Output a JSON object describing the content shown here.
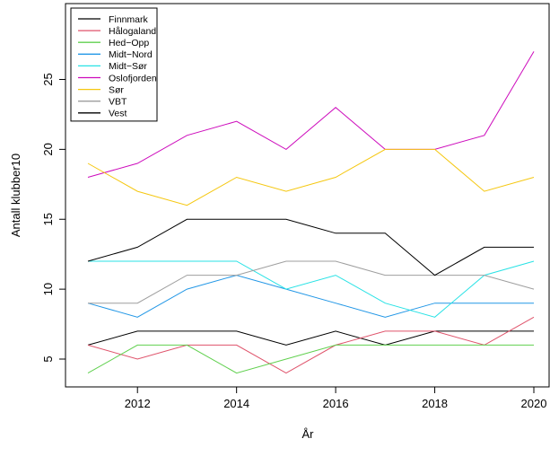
{
  "chart_data": {
    "type": "line",
    "xlabel": "År",
    "ylabel": "Antall klubber10",
    "xlim": [
      2011,
      2020
    ],
    "ylim": [
      4,
      27
    ],
    "x_ticks": [
      2012,
      2014,
      2016,
      2018,
      2020
    ],
    "y_ticks": [
      5,
      10,
      15,
      20,
      25
    ],
    "legend_position": "top-left",
    "grid": false,
    "x": [
      2011,
      2012,
      2013,
      2014,
      2015,
      2016,
      2017,
      2018,
      2019,
      2020
    ],
    "series": [
      {
        "name": "Finnmark",
        "color": "#000000",
        "values": [
          6,
          7,
          7,
          7,
          6,
          7,
          6,
          7,
          7,
          7
        ]
      },
      {
        "name": "Hålogaland",
        "color": "#DF536B",
        "values": [
          6,
          5,
          6,
          6,
          4,
          6,
          7,
          7,
          6,
          8
        ]
      },
      {
        "name": "Hed−Opp",
        "color": "#61D04F",
        "values": [
          4,
          6,
          6,
          4,
          5,
          6,
          6,
          6,
          6,
          6
        ]
      },
      {
        "name": "Midt−Nord",
        "color": "#2297E6",
        "values": [
          9,
          8,
          10,
          11,
          10,
          9,
          8,
          9,
          9,
          9
        ]
      },
      {
        "name": "Midt−Sør",
        "color": "#28E2E5",
        "values": [
          12,
          12,
          12,
          12,
          10,
          11,
          9,
          8,
          11,
          12
        ]
      },
      {
        "name": "Oslofjorden",
        "color": "#CD0BBC",
        "values": [
          18,
          19,
          21,
          22,
          20,
          23,
          20,
          20,
          21,
          27
        ]
      },
      {
        "name": "Sør",
        "color": "#F5C710",
        "values": [
          19,
          17,
          16,
          18,
          17,
          18,
          20,
          20,
          17,
          18
        ]
      },
      {
        "name": "VBT",
        "color": "#9E9E9E",
        "values": [
          9,
          9,
          11,
          11,
          12,
          12,
          11,
          11,
          11,
          10
        ]
      },
      {
        "name": "Vest",
        "color": "#000000",
        "values": [
          12,
          13,
          15,
          15,
          15,
          14,
          14,
          11,
          13,
          13
        ]
      }
    ]
  }
}
